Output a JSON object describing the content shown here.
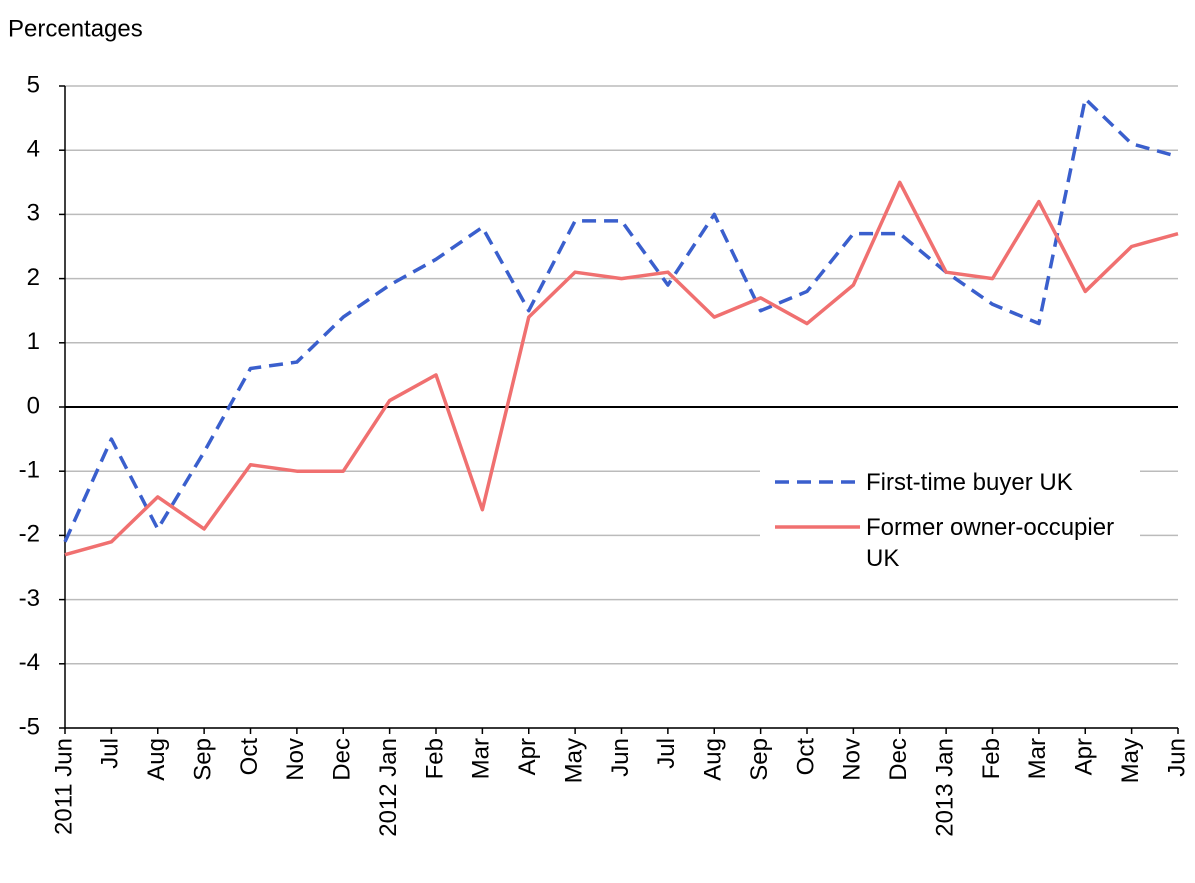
{
  "chart_data": {
    "type": "line",
    "ylabel": "Percentages",
    "categories": [
      "2011 Jun",
      "Jul",
      "Aug",
      "Sep",
      "Oct",
      "Nov",
      "Dec",
      "2012 Jan",
      "Feb",
      "Mar",
      "Apr",
      "May",
      "Jun",
      "Jul",
      "Aug",
      "Sep",
      "Oct",
      "Nov",
      "Dec",
      "2013 Jan",
      "Feb",
      "Mar",
      "Apr",
      "May",
      "Jun"
    ],
    "series": [
      {
        "name": "First-time buyer UK",
        "color": "#3a5fcd",
        "dash": "dashed",
        "values": [
          -2.1,
          -0.5,
          -1.9,
          -0.7,
          0.6,
          0.7,
          1.4,
          1.9,
          2.3,
          2.8,
          1.5,
          2.9,
          2.9,
          1.9,
          3.0,
          1.5,
          1.8,
          2.7,
          2.7,
          2.1,
          1.6,
          1.3,
          4.8,
          4.1,
          3.9
        ]
      },
      {
        "name": "Former owner-occupier UK",
        "color": "#f07070",
        "dash": "solid",
        "values": [
          -2.3,
          -2.1,
          -1.4,
          -1.9,
          -0.9,
          -1.0,
          -1.0,
          0.1,
          0.5,
          -1.6,
          1.4,
          2.1,
          2.0,
          2.1,
          1.4,
          1.7,
          1.3,
          1.9,
          3.5,
          2.1,
          2.0,
          3.2,
          1.8,
          2.5,
          2.7
        ]
      }
    ],
    "ylim": [
      -5,
      5
    ],
    "yticks": [
      -5,
      -4,
      -3,
      -2,
      -1,
      0,
      1,
      2,
      3,
      4,
      5
    ],
    "grid": true,
    "legend": "right"
  }
}
